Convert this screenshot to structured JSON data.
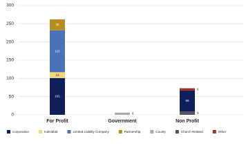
{
  "chart_data": {
    "type": "stacked_bar",
    "categories": [
      "For Profit",
      "Government",
      "Non Profit"
    ],
    "series": [
      {
        "name": "Corporation",
        "color": "#0f1f5c",
        "values": [
          101,
          null,
          58
        ]
      },
      {
        "name": "Individual",
        "color": "#f0d77a",
        "values": [
          16,
          null,
          null
        ]
      },
      {
        "name": "Limited Liability Company",
        "color": "#4a72b8",
        "values": [
          115,
          null,
          null
        ]
      },
      {
        "name": "Partnership",
        "color": "#b38f1e",
        "values": [
          30,
          null,
          null
        ]
      },
      {
        "name": "County",
        "color": "#a9a9a9",
        "values": [
          null,
          6,
          null
        ]
      },
      {
        "name": "Church Related",
        "color": "#555555",
        "values": [
          null,
          null,
          9
        ]
      },
      {
        "name": "Other",
        "color": "#b22a1f",
        "values": [
          null,
          null,
          6
        ]
      }
    ],
    "ylim": [
      0,
      300
    ],
    "yticks": [
      0,
      50,
      100,
      150,
      200,
      250,
      300
    ],
    "grid": true
  }
}
